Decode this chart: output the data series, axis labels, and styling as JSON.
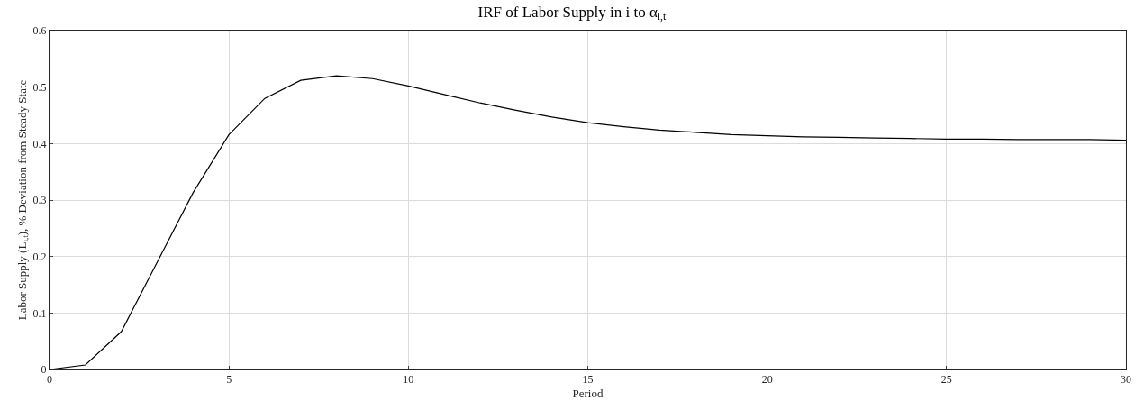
{
  "chart_data": {
    "type": "line",
    "title": "IRF of Labor Supply in i to α$_{i,t}$",
    "xlabel": "Period",
    "ylabel": "Labor Supply (L$_{i,t}$), % Deviation from Steady State",
    "x": [
      0,
      1,
      2,
      3,
      4,
      5,
      6,
      7,
      8,
      9,
      10,
      11,
      12,
      13,
      14,
      15,
      16,
      17,
      18,
      19,
      20,
      21,
      22,
      23,
      24,
      25,
      26,
      27,
      28,
      29,
      30
    ],
    "series": [
      {
        "color": "#000000",
        "values": [
          0,
          0.008,
          0.067,
          0.19,
          0.313,
          0.416,
          0.48,
          0.512,
          0.52,
          0.515,
          0.502,
          0.487,
          0.472,
          0.459,
          0.447,
          0.437,
          0.43,
          0.424,
          0.42,
          0.416,
          0.414,
          0.412,
          0.411,
          0.41,
          0.409,
          0.408,
          0.408,
          0.407,
          0.407,
          0.407,
          0.406
        ]
      }
    ],
    "xlim": [
      0,
      30
    ],
    "xticks": [
      0,
      5,
      10,
      15,
      20,
      25,
      30
    ],
    "ylim": [
      0,
      0.6
    ],
    "yticks": [
      0,
      0.1,
      0.2,
      0.3,
      0.4,
      0.5,
      0.6
    ],
    "grid": true,
    "marker": "none",
    "line_style": "solid"
  }
}
